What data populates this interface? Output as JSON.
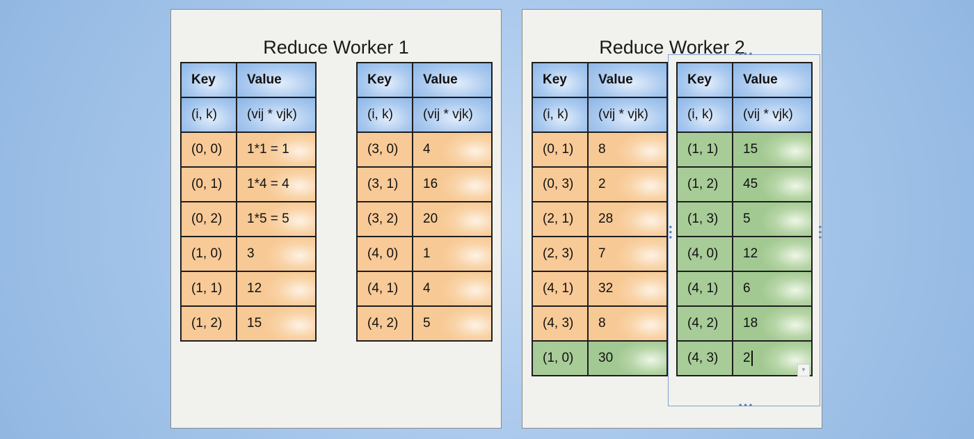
{
  "worker1": {
    "title": "Reduce Worker 1",
    "tables": [
      {
        "header": [
          "Key",
          "Value"
        ],
        "subheader": [
          "(i, k)",
          "(vij * vjk)"
        ],
        "rows": [
          {
            "key": "(0, 0)",
            "value": "1*1 = 1",
            "color": "orange"
          },
          {
            "key": "(0, 1)",
            "value": "1*4 = 4",
            "color": "orange"
          },
          {
            "key": "(0, 2)",
            "value": "1*5 = 5",
            "color": "orange"
          },
          {
            "key": "(1, 0)",
            "value": "3",
            "color": "orange"
          },
          {
            "key": "(1, 1)",
            "value": "12",
            "color": "orange"
          },
          {
            "key": "(1, 2)",
            "value": "15",
            "color": "orange"
          }
        ]
      },
      {
        "header": [
          "Key",
          "Value"
        ],
        "subheader": [
          "(i, k)",
          "(vij * vjk)"
        ],
        "rows": [
          {
            "key": "(3, 0)",
            "value": "4",
            "color": "orange"
          },
          {
            "key": "(3, 1)",
            "value": "16",
            "color": "orange"
          },
          {
            "key": "(3, 2)",
            "value": "20",
            "color": "orange"
          },
          {
            "key": "(4, 0)",
            "value": "1",
            "color": "orange"
          },
          {
            "key": "(4, 1)",
            "value": "4",
            "color": "orange"
          },
          {
            "key": "(4, 2)",
            "value": "5",
            "color": "orange"
          }
        ]
      }
    ]
  },
  "worker2": {
    "title": "Reduce Worker 2",
    "tables": [
      {
        "header": [
          "Key",
          "Value"
        ],
        "subheader": [
          "(i, k)",
          "(vij * vjk)"
        ],
        "rows": [
          {
            "key": "(0, 1)",
            "value": "8",
            "color": "orange"
          },
          {
            "key": "(0, 3)",
            "value": "2",
            "color": "orange"
          },
          {
            "key": "(2, 1)",
            "value": "28",
            "color": "orange"
          },
          {
            "key": "(2, 3)",
            "value": "7",
            "color": "orange"
          },
          {
            "key": "(4, 1)",
            "value": "32",
            "color": "orange"
          },
          {
            "key": "(4, 3)",
            "value": "8",
            "color": "orange"
          },
          {
            "key": "(1, 0)",
            "value": "30",
            "color": "green"
          }
        ]
      },
      {
        "header": [
          "Key",
          "Value"
        ],
        "subheader": [
          "(i, k)",
          "(vij * vjk)"
        ],
        "rows": [
          {
            "key": "(1, 1)",
            "value": "15",
            "color": "green"
          },
          {
            "key": "(1, 2)",
            "value": "45",
            "color": "green"
          },
          {
            "key": "(1, 3)",
            "value": "5",
            "color": "green"
          },
          {
            "key": "(4, 0)",
            "value": "12",
            "color": "green"
          },
          {
            "key": "(4, 1)",
            "value": "6",
            "color": "green"
          },
          {
            "key": "(4, 2)",
            "value": "18",
            "color": "green"
          },
          {
            "key": "(4, 3)",
            "value": "2",
            "color": "green"
          }
        ]
      }
    ]
  },
  "selection": {
    "icon": "dropdown-arrow-icon",
    "glyph": "▼"
  },
  "colors": {
    "header_blue": "#a9c9ef",
    "row_orange": "#f9d3a7",
    "row_green": "#b6d5a6"
  }
}
